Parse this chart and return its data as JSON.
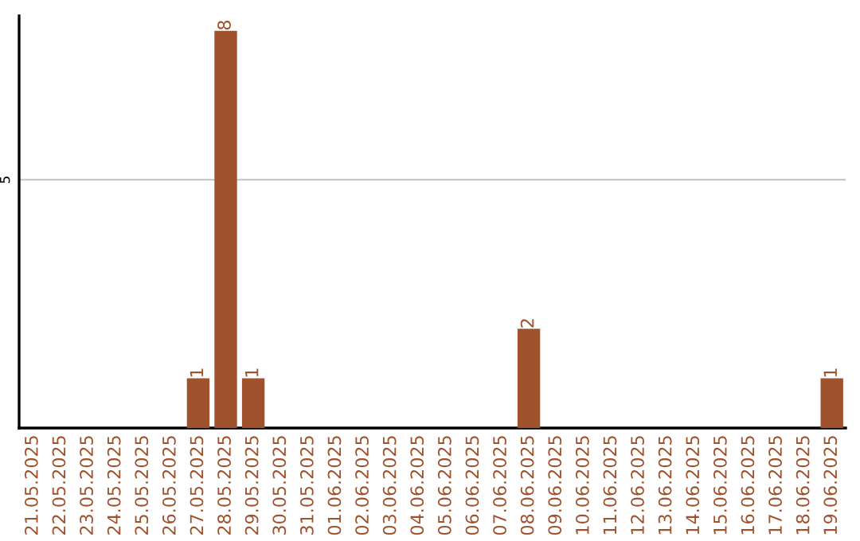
{
  "chart_data": {
    "type": "bar",
    "categories": [
      "21.05.2025",
      "22.05.2025",
      "23.05.2025",
      "24.05.2025",
      "25.05.2025",
      "26.05.2025",
      "27.05.2025",
      "28.05.2025",
      "29.05.2025",
      "30.05.2025",
      "31.05.2025",
      "01.06.2025",
      "02.06.2025",
      "03.06.2025",
      "04.06.2025",
      "05.06.2025",
      "06.06.2025",
      "07.06.2025",
      "08.06.2025",
      "09.06.2025",
      "10.06.2025",
      "11.06.2025",
      "12.06.2025",
      "13.06.2025",
      "14.06.2025",
      "15.06.2025",
      "16.06.2025",
      "17.06.2025",
      "18.06.2025",
      "19.06.2025"
    ],
    "values": [
      0,
      0,
      0,
      0,
      0,
      0,
      1,
      8,
      1,
      0,
      0,
      0,
      0,
      0,
      0,
      0,
      0,
      0,
      2,
      0,
      0,
      0,
      0,
      0,
      0,
      0,
      0,
      0,
      0,
      1
    ],
    "value_labels": [
      null,
      null,
      null,
      null,
      null,
      null,
      "1",
      "8",
      "1",
      null,
      null,
      null,
      null,
      null,
      null,
      null,
      null,
      null,
      "2",
      null,
      null,
      null,
      null,
      null,
      null,
      null,
      null,
      null,
      null,
      "1"
    ],
    "color": "#a0522d",
    "ylim": [
      0,
      8.3
    ],
    "yticks": [
      5
    ],
    "grid": "y"
  }
}
